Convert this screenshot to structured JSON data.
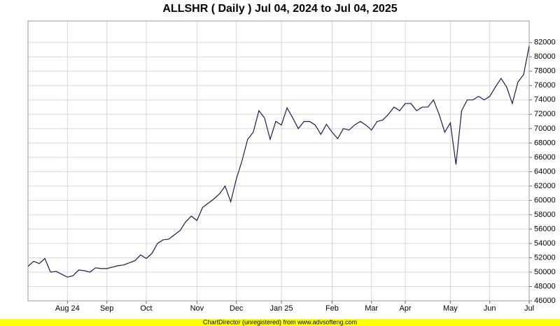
{
  "chart_data": {
    "type": "line",
    "title": "ALLSHR ( Daily ) Jul 04, 2024 to Jul 04, 2025",
    "footer": "ChartDirector (unregistered) from www.advsofteng.com",
    "categories": [
      null,
      null,
      null,
      null,
      null,
      null,
      null,
      "Aug 24",
      null,
      null,
      null,
      null,
      null,
      null,
      "Sep",
      null,
      null,
      null,
      null,
      null,
      null,
      "Oct",
      null,
      null,
      null,
      null,
      null,
      null,
      null,
      null,
      "Nov",
      null,
      null,
      null,
      null,
      null,
      null,
      "Dec",
      null,
      null,
      null,
      null,
      null,
      null,
      null,
      "Jan 25",
      null,
      null,
      null,
      null,
      null,
      null,
      null,
      null,
      "Feb",
      null,
      null,
      null,
      null,
      null,
      null,
      "Mar",
      null,
      null,
      null,
      null,
      null,
      "Apr",
      null,
      null,
      null,
      null,
      null,
      null,
      null,
      "May",
      null,
      null,
      null,
      null,
      null,
      null,
      "Jun",
      null,
      null,
      null,
      null,
      null,
      null,
      "Jul"
    ],
    "series": [
      {
        "name": "ALLSHR",
        "color": "#1a1a4e",
        "values": [
          50800,
          51500,
          51200,
          51900,
          50000,
          50100,
          49700,
          49300,
          49500,
          50300,
          50200,
          50000,
          50600,
          50500,
          50500,
          50700,
          50900,
          51000,
          51300,
          51600,
          52400,
          51900,
          52600,
          54000,
          54500,
          54600,
          55200,
          55800,
          57000,
          57800,
          57200,
          59000,
          59600,
          60200,
          60900,
          62000,
          59800,
          63000,
          65500,
          68500,
          69500,
          72500,
          71500,
          68500,
          71000,
          70500,
          72900,
          71500,
          70000,
          71000,
          71000,
          70500,
          69200,
          70600,
          69500,
          68600,
          70000,
          69800,
          70500,
          71000,
          70500,
          69800,
          71000,
          71200,
          72000,
          73000,
          72500,
          73500,
          73500,
          72500,
          73000,
          73000,
          74000,
          72000,
          69500,
          70800,
          65000,
          72500,
          74000,
          74000,
          74500,
          74000,
          74500,
          75800,
          77000,
          75800,
          73500,
          76500,
          77500,
          81500
        ]
      }
    ],
    "ylim": [
      46000,
      85000
    ],
    "yticks": [
      46000,
      48000,
      50000,
      52000,
      54000,
      56000,
      58000,
      60000,
      62000,
      64000,
      66000,
      68000,
      70000,
      72000,
      74000,
      76000,
      78000,
      80000,
      82000
    ],
    "grid": true
  }
}
